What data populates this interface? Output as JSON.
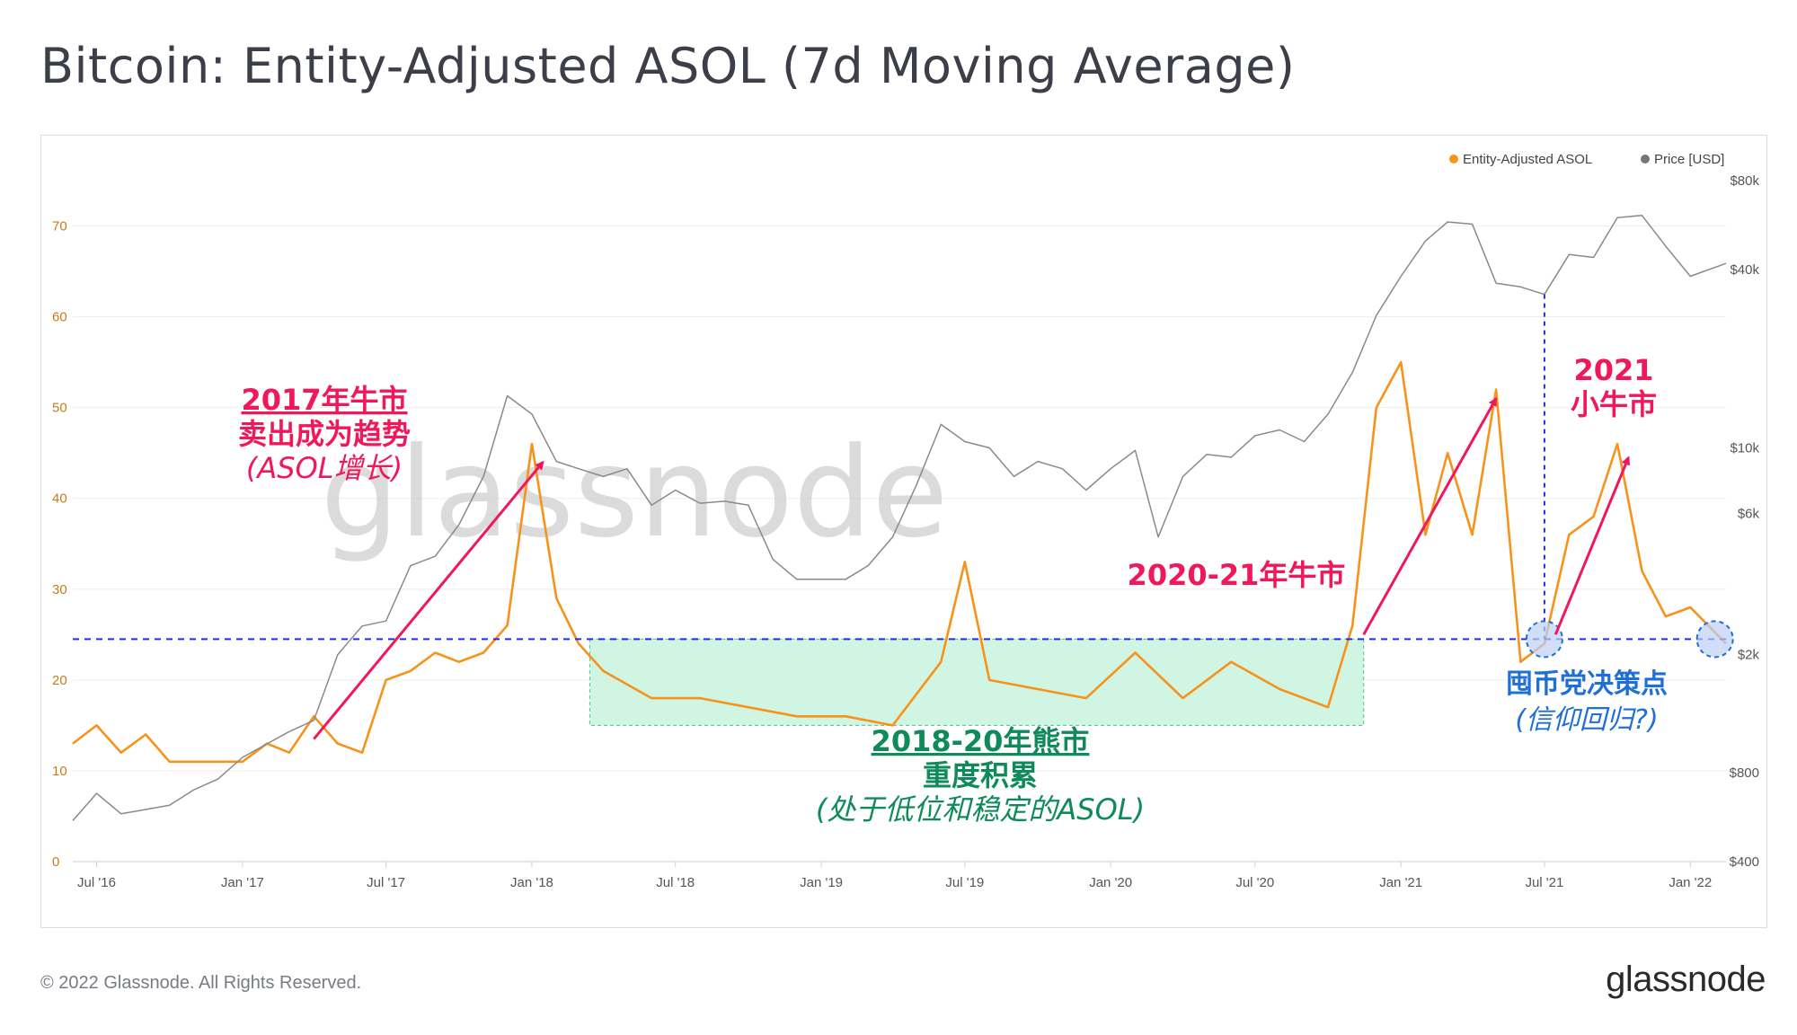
{
  "title": "Bitcoin: Entity-Adjusted ASOL (7d Moving Average)",
  "copyright": "© 2022 Glassnode. All Rights Reserved.",
  "logo": "glassnode",
  "watermark": "glassnode",
  "chart_data": {
    "type": "line",
    "title": "Bitcoin: Entity-Adjusted ASOL (7d Moving Average)",
    "legend": {
      "placement": "top-right",
      "items": [
        "Entity-Adjusted ASOL",
        "Price [USD]"
      ]
    },
    "x_ticks": [
      "Jul '16",
      "Jan '17",
      "Jul '17",
      "Jan '18",
      "Jul '18",
      "Jan '19",
      "Jul '19",
      "Jan '20",
      "Jul '20",
      "Jan '21",
      "Jul '21",
      "Jan '22"
    ],
    "x_tick_dates": [
      "2016-07-01",
      "2017-01-01",
      "2017-07-01",
      "2018-01-01",
      "2018-07-01",
      "2019-01-01",
      "2019-07-01",
      "2020-01-01",
      "2020-07-01",
      "2021-01-01",
      "2021-07-01",
      "2022-01-01"
    ],
    "xlim": [
      "2016-06-01",
      "2022-02-15"
    ],
    "y_left": {
      "ticks": [
        "0",
        "10",
        "20",
        "30",
        "40",
        "50",
        "60",
        "70"
      ],
      "range": [
        0,
        75
      ],
      "color": "#c97a1a"
    },
    "y_right": {
      "ticks": [
        "$400",
        "$800",
        "$2k",
        "$6k",
        "$10k",
        "$40k",
        "$80k"
      ],
      "tick_values": [
        400,
        800,
        2000,
        6000,
        10000,
        40000,
        80000
      ],
      "range": [
        400,
        80000
      ],
      "scale": "log"
    },
    "series": [
      {
        "name": "Entity-Adjusted ASOL",
        "color": "#f7931a",
        "axis": "left",
        "x": [
          "2016-06-01",
          "2016-07-01",
          "2016-08-01",
          "2016-09-01",
          "2016-10-01",
          "2016-11-01",
          "2016-12-01",
          "2017-01-01",
          "2017-02-01",
          "2017-03-01",
          "2017-04-01",
          "2017-05-01",
          "2017-06-01",
          "2017-07-01",
          "2017-08-01",
          "2017-09-01",
          "2017-10-01",
          "2017-11-01",
          "2017-12-01",
          "2018-01-01",
          "2018-02-01",
          "2018-03-01",
          "2018-04-01",
          "2018-06-01",
          "2018-08-01",
          "2018-10-01",
          "2018-12-01",
          "2019-02-01",
          "2019-04-01",
          "2019-06-01",
          "2019-07-01",
          "2019-08-01",
          "2019-10-01",
          "2019-12-01",
          "2020-02-01",
          "2020-04-01",
          "2020-06-01",
          "2020-08-01",
          "2020-10-01",
          "2020-11-01",
          "2020-12-01",
          "2021-01-01",
          "2021-02-01",
          "2021-03-01",
          "2021-04-01",
          "2021-05-01",
          "2021-06-01",
          "2021-07-01",
          "2021-08-01",
          "2021-09-01",
          "2021-10-01",
          "2021-11-01",
          "2021-12-01",
          "2022-01-01",
          "2022-02-15"
        ],
        "values": [
          13,
          15,
          12,
          14,
          11,
          11,
          11,
          11,
          13,
          12,
          16,
          13,
          12,
          20,
          21,
          23,
          22,
          23,
          26,
          46,
          29,
          24,
          21,
          18,
          18,
          17,
          16,
          16,
          15,
          22,
          33,
          20,
          19,
          18,
          23,
          18,
          22,
          19,
          17,
          26,
          50,
          55,
          36,
          45,
          36,
          52,
          22,
          24,
          36,
          38,
          46,
          32,
          27,
          28,
          24
        ]
      },
      {
        "name": "Price [USD]",
        "color": "#8a8a8a",
        "axis": "right",
        "x": [
          "2016-06-01",
          "2016-07-01",
          "2016-08-01",
          "2016-09-01",
          "2016-10-01",
          "2016-11-01",
          "2016-12-01",
          "2017-01-01",
          "2017-02-01",
          "2017-03-01",
          "2017-04-01",
          "2017-05-01",
          "2017-06-01",
          "2017-07-01",
          "2017-08-01",
          "2017-09-01",
          "2017-10-01",
          "2017-11-01",
          "2017-12-01",
          "2018-01-01",
          "2018-02-01",
          "2018-03-01",
          "2018-04-01",
          "2018-05-01",
          "2018-06-01",
          "2018-07-01",
          "2018-08-01",
          "2018-09-01",
          "2018-10-01",
          "2018-11-01",
          "2018-12-01",
          "2019-01-01",
          "2019-02-01",
          "2019-03-01",
          "2019-04-01",
          "2019-05-01",
          "2019-06-01",
          "2019-07-01",
          "2019-08-01",
          "2019-09-01",
          "2019-10-01",
          "2019-11-01",
          "2019-12-01",
          "2020-01-01",
          "2020-02-01",
          "2020-03-01",
          "2020-04-01",
          "2020-05-01",
          "2020-06-01",
          "2020-07-01",
          "2020-08-01",
          "2020-09-01",
          "2020-10-01",
          "2020-11-01",
          "2020-12-01",
          "2021-01-01",
          "2021-02-01",
          "2021-03-01",
          "2021-04-01",
          "2021-05-01",
          "2021-06-01",
          "2021-07-01",
          "2021-08-01",
          "2021-09-01",
          "2021-10-01",
          "2021-11-01",
          "2021-12-01",
          "2022-01-01",
          "2022-02-15"
        ],
        "values": [
          550,
          680,
          580,
          600,
          620,
          700,
          760,
          900,
          1000,
          1100,
          1200,
          2000,
          2500,
          2600,
          4000,
          4300,
          5500,
          8000,
          15000,
          13000,
          9000,
          8500,
          8000,
          8500,
          6400,
          7200,
          6500,
          6600,
          6400,
          4200,
          3600,
          3600,
          3600,
          4000,
          5000,
          7500,
          12000,
          10500,
          10000,
          8000,
          9000,
          8500,
          7200,
          8500,
          9800,
          5000,
          8000,
          9500,
          9300,
          11000,
          11500,
          10500,
          13000,
          18000,
          28000,
          38000,
          50000,
          58000,
          57000,
          36000,
          35000,
          33000,
          45000,
          44000,
          60000,
          61000,
          48000,
          38000,
          42000
        ]
      }
    ],
    "bands": [
      {
        "x_start": "2018-03-15",
        "x_end": "2020-11-15",
        "y_start": 15,
        "y_end": 24.5,
        "color": "#c5f2dc"
      }
    ],
    "reference_lines": [
      {
        "orientation": "horizontal",
        "axis": "left",
        "value": 24.5,
        "color": "#1f2ee6",
        "style": "dashed"
      },
      {
        "orientation": "vertical",
        "x": "2021-07-01",
        "color": "#1f2ee6",
        "style": "dashed"
      }
    ],
    "circles": [
      {
        "x": "2021-07-01",
        "y": 24.5
      },
      {
        "x": "2022-02-01",
        "y": 24.5
      }
    ],
    "arrows": [
      {
        "from": [
          "2017-04-01",
          13.5
        ],
        "to": [
          "2018-01-15",
          44
        ],
        "color": "#f0185a"
      },
      {
        "from": [
          "2020-11-15",
          25
        ],
        "to": [
          "2021-05-01",
          51
        ],
        "color": "#f0185a"
      },
      {
        "from": [
          "2021-07-15",
          25
        ],
        "to": [
          "2021-10-15",
          44.5
        ],
        "color": "#f0185a"
      }
    ],
    "annotations": [
      {
        "lines": [
          "2017年牛市",
          "卖出成为趋势",
          "(ASOL增长)"
        ],
        "color": "#f0185a"
      },
      {
        "lines": [
          "2020-21年牛市"
        ],
        "color": "#f0185a"
      },
      {
        "lines": [
          "2021",
          "小牛市"
        ],
        "color": "#f0185a"
      },
      {
        "lines": [
          "2018-20年熊市",
          "重度积累",
          "(处于低位和稳定的ASOL)"
        ],
        "color": "#0e8a5b"
      },
      {
        "lines": [
          "囤币党决策点",
          "(信仰回归?)"
        ],
        "color": "#1f6fd6"
      }
    ]
  }
}
